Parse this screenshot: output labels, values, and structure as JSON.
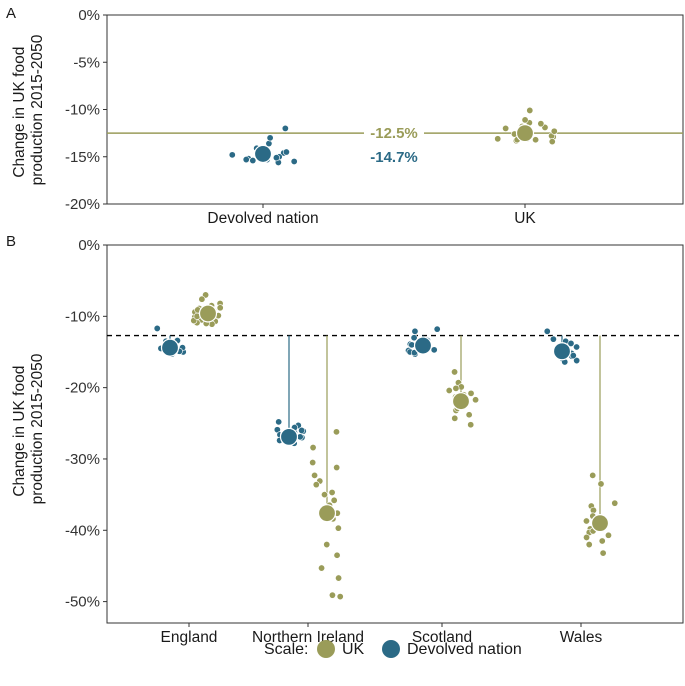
{
  "colors": {
    "uk": "#9a9c59",
    "devolved": "#2b6a86",
    "axis": "#333333",
    "hline": "#000000"
  },
  "legend": {
    "title": "Scale:",
    "items": [
      {
        "label": "UK",
        "color": "#9a9c59"
      },
      {
        "label": "Devolved nation",
        "color": "#2b6a86"
      }
    ]
  },
  "chart_data": [
    {
      "panel": "A",
      "type": "scatter",
      "ylabel_lines": [
        "Change in UK food",
        "production 2015-2050"
      ],
      "ylim": [
        -20,
        0
      ],
      "yticks": [
        0,
        -5,
        -10,
        -15,
        -20
      ],
      "ytick_labels": [
        "0%",
        "-5%",
        "-10%",
        "-15%",
        "-20%"
      ],
      "categories": [
        "Devolved nation",
        "UK"
      ],
      "reference_line": {
        "value": -12.5,
        "style": "solid",
        "color": "#9a9c59"
      },
      "annotations": [
        {
          "text": "-12.5%",
          "value": -12.5,
          "series": "UK"
        },
        {
          "text": "-14.7%",
          "value": -14.7,
          "series": "Devolved nation"
        }
      ],
      "series": [
        {
          "name": "Devolved nation",
          "category": "Devolved nation",
          "mean": -14.7,
          "points": [
            -15.6,
            -15.3,
            -14.9,
            -15.2,
            -14.6,
            -15.0,
            -15.1,
            -14.4,
            -14.2,
            -14.8,
            -13.6,
            -13.0,
            -14.1,
            -12.0,
            -15.4,
            -15.0,
            -15.3,
            -15.5,
            -15.1,
            -14.5
          ]
        },
        {
          "name": "UK",
          "category": "UK",
          "mean": -12.5,
          "points": [
            -13.1,
            -13.3,
            -12.6,
            -12.9,
            -13.1,
            -12.1,
            -12.4,
            -10.1,
            -11.4,
            -13.2,
            -12.8,
            -11.9,
            -12.0,
            -11.5,
            -13.2,
            -12.3,
            -11.8,
            -13.4,
            -11.1,
            -12.7
          ]
        }
      ]
    },
    {
      "panel": "B",
      "type": "scatter",
      "ylabel_lines": [
        "Change in UK food",
        "production 2015-2050"
      ],
      "ylim": [
        -53,
        0
      ],
      "yticks": [
        0,
        -10,
        -20,
        -30,
        -40,
        -50
      ],
      "ytick_labels": [
        "0%",
        "-10%",
        "-20%",
        "-30%",
        "-40%",
        "-50%"
      ],
      "categories": [
        "England",
        "Northern Ireland",
        "Scotland",
        "Wales"
      ],
      "reference_line": {
        "value": -12.7,
        "style": "dashed",
        "color": "#000000"
      },
      "series": [
        {
          "name": "Devolved nation",
          "means": [
            -14.4,
            -26.9,
            -14.1,
            -14.9
          ],
          "points": [
            [
              -11.7,
              -13.5,
              -14.0,
              -15.0,
              -13.9,
              -14.7,
              -14.1,
              -14.6,
              -15.3,
              -14.2,
              -14.4,
              -14.9,
              -14.5,
              -13.4,
              -14.8
            ],
            [
              -24.8,
              -25.9,
              -25.3,
              -26.6,
              -27.4,
              -26.3,
              -27.0,
              -27.8,
              -26.1,
              -26.9,
              -27.5,
              -26.0,
              -27.1,
              -26.5,
              -25.6
            ],
            [
              -11.8,
              -13.0,
              -12.1,
              -14.8,
              -15.0,
              -13.6,
              -14.7,
              -14.2,
              -13.9,
              -13.3,
              -15.3,
              -14.4,
              -14.0,
              -15.1,
              -13.4
            ],
            [
              -12.1,
              -13.2,
              -14.9,
              -15.6,
              -16.2,
              -16.0,
              -15.1,
              -14.3,
              -16.4,
              -14.7,
              -15.4,
              -15.2,
              -13.5,
              -13.8,
              -15.5
            ]
          ]
        },
        {
          "name": "UK",
          "means": [
            -9.6,
            -37.6,
            -21.9,
            -39.0
          ],
          "points": [
            [
              -7.0,
              -7.6,
              -8.2,
              -8.5,
              -8.8,
              -9.2,
              -9.6,
              -9.9,
              -10.1,
              -10.5,
              -10.7,
              -11.1,
              -10.9,
              -9.4,
              -8.9,
              -10.3,
              -11.0,
              -9.1,
              -10.6,
              -10.0
            ],
            [
              -26.2,
              -28.4,
              -30.5,
              -31.2,
              -32.3,
              -33.1,
              -33.6,
              -34.7,
              -35.0,
              -35.8,
              -37.6,
              -38.4,
              -39.7,
              -42.0,
              -43.5,
              -45.3,
              -46.7,
              -49.1,
              -49.3,
              -36.5
            ],
            [
              -17.8,
              -19.3,
              -19.9,
              -20.4,
              -21.0,
              -21.3,
              -22.1,
              -22.6,
              -23.2,
              -23.8,
              -24.3,
              -25.2,
              -20.8,
              -21.7,
              -22.9,
              -20.1
            ],
            [
              -32.3,
              -33.5,
              -36.2,
              -36.6,
              -37.2,
              -38.0,
              -38.7,
              -39.3,
              -39.8,
              -40.3,
              -40.7,
              -41.0,
              -41.5,
              -42.0,
              -43.2,
              -40.1
            ]
          ]
        }
      ]
    }
  ]
}
